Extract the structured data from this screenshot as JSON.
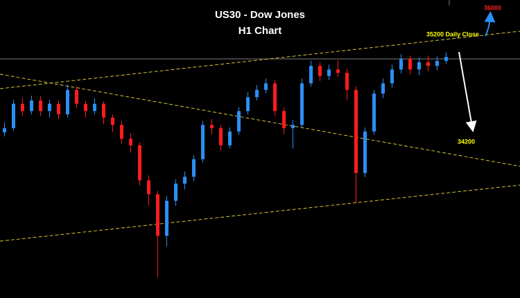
{
  "chart_data": {
    "type": "candlestick",
    "title": "US30 - Dow Jones",
    "subtitle": "H1 Chart",
    "ylim": [
      32267.5,
      35922.5
    ],
    "up_color": "#2b8ff5",
    "down_color": "#ff1c1c",
    "categories": [
      null,
      null,
      null,
      null,
      null,
      null,
      null,
      null,
      null,
      null,
      null,
      null,
      null,
      null,
      null,
      null,
      null,
      null,
      null,
      null,
      null,
      null,
      null,
      null,
      null,
      null,
      null,
      null,
      null,
      null,
      null,
      null,
      null,
      null,
      null,
      null,
      null,
      null,
      null,
      null,
      null,
      null,
      null,
      null,
      null,
      null,
      null,
      null,
      null,
      null
    ],
    "open": [
      34300,
      34350,
      34650,
      34560,
      34690,
      34560,
      34650,
      34520,
      34820,
      34650,
      34560,
      34650,
      34480,
      34390,
      34220,
      34140,
      33710,
      33540,
      33030,
      33460,
      33670,
      33755,
      33970,
      34390,
      34350,
      34140,
      34310,
      34560,
      34730,
      34820,
      34900,
      34560,
      34350,
      34390,
      34900,
      35115,
      34990,
      35070,
      35030,
      34820,
      33800,
      34310,
      34775,
      34900,
      35070,
      35200,
      35070,
      35160,
      35115,
      35175
    ],
    "high": [
      34420,
      34700,
      34720,
      34750,
      34740,
      34700,
      34690,
      34880,
      34860,
      34690,
      34720,
      34680,
      34520,
      34440,
      34290,
      34180,
      33770,
      33580,
      33520,
      33720,
      33820,
      34020,
      34440,
      34460,
      34390,
      34360,
      34610,
      34790,
      34880,
      34960,
      34940,
      34600,
      34450,
      34960,
      35180,
      35160,
      35130,
      35180,
      35080,
      34860,
      34360,
      34820,
      34960,
      35130,
      35260,
      35240,
      35220,
      35240,
      35230,
      35280
    ],
    "low": [
      34250,
      34320,
      34500,
      34520,
      34500,
      34480,
      34460,
      34480,
      34600,
      34480,
      34520,
      34400,
      34300,
      34160,
      34050,
      33650,
      33400,
      32520,
      32900,
      33400,
      33600,
      33700,
      33930,
      34280,
      34080,
      34100,
      34270,
      34520,
      34690,
      34780,
      34500,
      34280,
      34100,
      34350,
      34860,
      34930,
      34940,
      34980,
      34700,
      33440,
      33750,
      34270,
      34720,
      34850,
      35020,
      35010,
      35000,
      35050,
      35060,
      35140
    ],
    "close": [
      34350,
      34650,
      34560,
      34690,
      34560,
      34650,
      34520,
      34820,
      34650,
      34560,
      34650,
      34480,
      34390,
      34220,
      34140,
      33710,
      33540,
      33030,
      33460,
      33670,
      33755,
      33970,
      34390,
      34350,
      34140,
      34310,
      34560,
      34730,
      34820,
      34900,
      34560,
      34350,
      34390,
      34900,
      35115,
      34990,
      35070,
      35030,
      34820,
      33800,
      34310,
      34775,
      34900,
      35070,
      35200,
      35070,
      35160,
      35115,
      35175,
      35225
    ],
    "hline": {
      "value": 35200,
      "color": "#7a7a7a"
    },
    "trendlines": [
      {
        "color": "#d8c436",
        "values": [
          34835,
          35540
        ]
      },
      {
        "color": "#d8c436",
        "values": [
          35013,
          33883
        ]
      },
      {
        "color": "#d8c436",
        "values": [
          32965,
          33653
        ]
      }
    ],
    "annotations": [
      {
        "text": "35200 Daily Close",
        "color": "#ffff00"
      },
      {
        "text": "34200",
        "color": "#ffff00"
      },
      {
        "text": "36000",
        "color": "#ff2020"
      }
    ]
  }
}
